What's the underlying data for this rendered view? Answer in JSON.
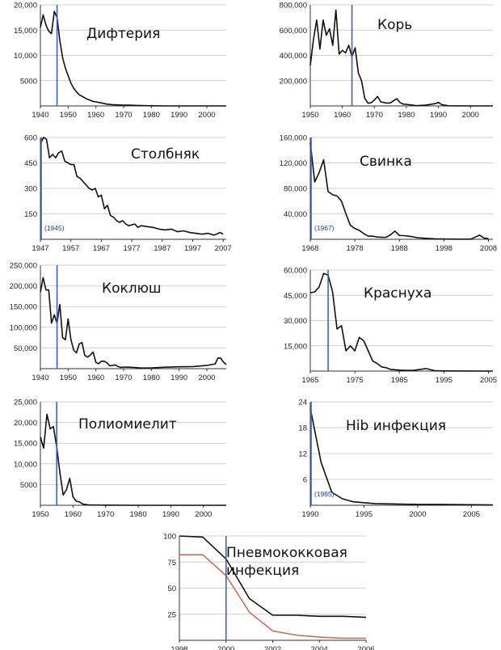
{
  "colors": {
    "line": "#111111",
    "marker": "#3b63b8",
    "secondary": "#c8705a",
    "grid": "#cfcfcf"
  },
  "chart_data": [
    {
      "type": "line",
      "title": "Дифтерия",
      "xlim": [
        1940,
        2007
      ],
      "ylim": [
        0,
        20000
      ],
      "x_ticks": [
        1940,
        1950,
        1960,
        1970,
        1980,
        1990,
        2000
      ],
      "y_ticks": [
        5000,
        10000,
        15000,
        20000
      ],
      "y_tick_labels": [
        "5000",
        "10,000",
        "15,000",
        "20,000"
      ],
      "marker_year": 1946,
      "series": [
        {
          "x": [
            1940,
            1941,
            1942,
            1943,
            1944,
            1945,
            1946,
            1947,
            1948,
            1949,
            1950,
            1951,
            1952,
            1953,
            1954,
            1955,
            1956,
            1957,
            1958,
            1959,
            1960,
            1962,
            1964,
            1966,
            1968,
            1970,
            1972,
            1975,
            1980,
            1985,
            1990,
            1995,
            2000,
            2007
          ],
          "values": [
            15500,
            18000,
            16000,
            14800,
            14300,
            18700,
            17500,
            13000,
            9500,
            7500,
            6000,
            4500,
            3500,
            2800,
            2200,
            1900,
            1600,
            1300,
            1100,
            900,
            800,
            600,
            350,
            250,
            200,
            150,
            150,
            100,
            30,
            5,
            5,
            2,
            2,
            0
          ]
        }
      ]
    },
    {
      "type": "line",
      "title": "Корь",
      "xlim": [
        1950,
        2007
      ],
      "ylim": [
        0,
        800000
      ],
      "x_ticks": [
        1950,
        1960,
        1970,
        1980,
        1990,
        2000
      ],
      "y_ticks": [
        200000,
        400000,
        600000,
        800000
      ],
      "y_tick_labels": [
        "200,000",
        "400,000",
        "600,000",
        "800,000"
      ],
      "marker_year": 1963,
      "series": [
        {
          "x": [
            1950,
            1951,
            1952,
            1953,
            1954,
            1955,
            1956,
            1957,
            1958,
            1959,
            1960,
            1961,
            1962,
            1963,
            1964,
            1965,
            1966,
            1967,
            1968,
            1969,
            1970,
            1971,
            1972,
            1973,
            1974,
            1975,
            1976,
            1977,
            1978,
            1979,
            1980,
            1983,
            1986,
            1989,
            1990,
            1991,
            1993,
            1996,
            2000,
            2007
          ],
          "values": [
            320000,
            530000,
            680000,
            450000,
            680000,
            560000,
            610000,
            480000,
            760000,
            410000,
            440000,
            420000,
            480000,
            390000,
            460000,
            260000,
            200000,
            60000,
            22000,
            25000,
            47000,
            75000,
            32000,
            27000,
            22000,
            24000,
            41000,
            57000,
            27000,
            14000,
            13000,
            2000,
            6000,
            18000,
            28000,
            10000,
            1000,
            500,
            100,
            50
          ]
        }
      ]
    },
    {
      "type": "line",
      "title": "Столбняк",
      "xlim": [
        1947,
        2008
      ],
      "ylim": [
        0,
        600
      ],
      "x_ticks": [
        1947,
        1957,
        1967,
        1977,
        1987,
        1997,
        2007
      ],
      "y_ticks": [
        150,
        300,
        450,
        600
      ],
      "y_tick_labels": [
        "150",
        "300",
        "450",
        "600"
      ],
      "marker_year": 1947,
      "annotation": "(1945)",
      "series": [
        {
          "x": [
            1947,
            1948,
            1949,
            1950,
            1951,
            1952,
            1953,
            1954,
            1955,
            1956,
            1957,
            1958,
            1959,
            1960,
            1961,
            1962,
            1963,
            1964,
            1965,
            1966,
            1967,
            1968,
            1969,
            1970,
            1971,
            1972,
            1973,
            1974,
            1975,
            1976,
            1977,
            1978,
            1979,
            1980,
            1982,
            1984,
            1986,
            1988,
            1990,
            1992,
            1994,
            1996,
            1998,
            2000,
            2002,
            2004,
            2006,
            2007
          ],
          "values": [
            560,
            600,
            590,
            480,
            500,
            480,
            510,
            520,
            460,
            450,
            440,
            440,
            370,
            360,
            340,
            320,
            300,
            290,
            300,
            250,
            260,
            180,
            200,
            140,
            130,
            110,
            100,
            110,
            90,
            80,
            85,
            90,
            70,
            80,
            75,
            70,
            60,
            55,
            60,
            45,
            50,
            40,
            35,
            30,
            35,
            25,
            40,
            30
          ]
        }
      ]
    },
    {
      "type": "line",
      "title": "Свинка",
      "xlim": [
        1968,
        2009
      ],
      "ylim": [
        0,
        160000
      ],
      "x_ticks": [
        1968,
        1978,
        1988,
        1998,
        2008
      ],
      "y_ticks": [
        40000,
        80000,
        120000,
        160000
      ],
      "y_tick_labels": [
        "40,000",
        "80,000",
        "120,000",
        "160,000"
      ],
      "marker_year": 1968,
      "annotation": "(1967)",
      "series": [
        {
          "x": [
            1968,
            1969,
            1970,
            1971,
            1972,
            1973,
            1974,
            1975,
            1976,
            1977,
            1978,
            1979,
            1980,
            1981,
            1982,
            1983,
            1984,
            1985,
            1986,
            1987,
            1988,
            1989,
            1990,
            1991,
            1992,
            1994,
            1996,
            2000,
            2004,
            2006,
            2007,
            2008
          ],
          "values": [
            152000,
            90000,
            105000,
            125000,
            75000,
            70000,
            68000,
            60000,
            40000,
            22000,
            17000,
            14000,
            9000,
            5000,
            5000,
            3500,
            3000,
            3000,
            7000,
            13000,
            6000,
            5700,
            5000,
            4000,
            2500,
            1500,
            800,
            300,
            300,
            6500,
            2000,
            1000
          ]
        }
      ]
    },
    {
      "type": "line",
      "title": "Коклюш",
      "xlim": [
        1940,
        2007
      ],
      "ylim": [
        0,
        250000
      ],
      "x_ticks": [
        1940,
        1950,
        1960,
        1970,
        1980,
        1990,
        2000
      ],
      "y_ticks": [
        50000,
        100000,
        150000,
        200000,
        250000
      ],
      "y_tick_labels": [
        "50,000",
        "100,000",
        "150,000",
        "200,000",
        "250,000"
      ],
      "marker_year": 1946,
      "series": [
        {
          "x": [
            1940,
            1941,
            1942,
            1943,
            1944,
            1945,
            1946,
            1947,
            1948,
            1949,
            1950,
            1951,
            1952,
            1953,
            1954,
            1955,
            1956,
            1957,
            1958,
            1959,
            1960,
            1961,
            1962,
            1963,
            1964,
            1965,
            1966,
            1967,
            1968,
            1969,
            1970,
            1972,
            1974,
            1976,
            1980,
            1985,
            1990,
            1995,
            2000,
            2003,
            2004,
            2005,
            2006,
            2007
          ],
          "values": [
            185000,
            220000,
            190000,
            190000,
            110000,
            130000,
            110000,
            155000,
            75000,
            70000,
            120000,
            70000,
            45000,
            38000,
            60000,
            63000,
            32000,
            28000,
            33000,
            40000,
            15000,
            12000,
            18000,
            18000,
            14000,
            7000,
            8000,
            9000,
            5000,
            3000,
            4000,
            3500,
            3000,
            1500,
            1700,
            3600,
            4500,
            5000,
            7800,
            11600,
            25800,
            25600,
            15600,
            10000
          ]
        }
      ]
    },
    {
      "type": "line",
      "title": "Краснуха",
      "xlim": [
        1965,
        2006
      ],
      "ylim": [
        0,
        60000
      ],
      "x_ticks": [
        1965,
        1975,
        1985,
        1995,
        2005
      ],
      "y_ticks": [
        15000,
        30000,
        45000,
        60000
      ],
      "y_tick_labels": [
        "15,000",
        "30,000",
        "45,000",
        "60,000"
      ],
      "marker_year": 1969,
      "series": [
        {
          "x": [
            1965,
            1966,
            1967,
            1968,
            1969,
            1970,
            1971,
            1972,
            1973,
            1974,
            1975,
            1976,
            1977,
            1978,
            1979,
            1980,
            1981,
            1982,
            1983,
            1984,
            1985,
            1986,
            1988,
            1990,
            1991,
            1993,
            1995,
            2000,
            2006
          ],
          "values": [
            46500,
            47000,
            50000,
            58000,
            57000,
            47000,
            25000,
            27000,
            12000,
            15000,
            12000,
            20000,
            18000,
            12000,
            6000,
            4500,
            2500,
            2000,
            1000,
            800,
            600,
            500,
            400,
            1100,
            1500,
            200,
            100,
            50,
            10
          ]
        }
      ]
    },
    {
      "type": "line",
      "title": "Полиомиелит",
      "xlim": [
        1950,
        2007
      ],
      "ylim": [
        0,
        25000
      ],
      "x_ticks": [
        1950,
        1960,
        1970,
        1980,
        1990,
        2000
      ],
      "y_ticks": [
        5000,
        10000,
        15000,
        20000,
        25000
      ],
      "y_tick_labels": [
        "5000",
        "10,000",
        "15,000",
        "20,000",
        "25,000"
      ],
      "marker_year": 1955,
      "series": [
        {
          "x": [
            1950,
            1951,
            1952,
            1953,
            1954,
            1955,
            1956,
            1957,
            1958,
            1959,
            1960,
            1961,
            1962,
            1963,
            1965,
            1970,
            1980,
            1990,
            2007
          ],
          "values": [
            16500,
            13800,
            22000,
            18500,
            19000,
            14000,
            7800,
            2500,
            3800,
            6500,
            2000,
            1000,
            800,
            300,
            100,
            30,
            5,
            2,
            0
          ]
        }
      ]
    },
    {
      "type": "line",
      "title": "Hib инфекция",
      "xlim": [
        1990,
        2007
      ],
      "ylim": [
        0,
        24
      ],
      "x_ticks": [
        1990,
        1995,
        2000,
        2005
      ],
      "y_ticks": [
        6,
        12,
        18,
        24
      ],
      "y_tick_labels": [
        "6",
        "12",
        "18",
        "24"
      ],
      "marker_year": 1990,
      "annotation": "(1985)",
      "series": [
        {
          "x": [
            1990,
            1991,
            1992,
            1993,
            1994,
            1995,
            1996,
            1998,
            2000,
            2002,
            2004,
            2007
          ],
          "values": [
            22.5,
            10,
            3,
            1.5,
            0.8,
            0.6,
            0.4,
            0.3,
            0.2,
            0.2,
            0.15,
            0.1
          ]
        }
      ]
    },
    {
      "type": "line",
      "title": "Пневмококковая инфекция",
      "title_lines": [
        "Пневмококковая",
        "инфекция"
      ],
      "xlim": [
        1998,
        2006
      ],
      "ylim": [
        0,
        100
      ],
      "x_ticks": [
        1998,
        2000,
        2002,
        2004,
        2006
      ],
      "y_ticks": [
        25,
        50,
        75,
        100
      ],
      "y_tick_labels": [
        "25",
        "50",
        "75",
        "100"
      ],
      "marker_year": 2000,
      "series": [
        {
          "color": "#111111",
          "x": [
            1998,
            1999,
            2000,
            2001,
            2002,
            2003,
            2004,
            2005,
            2006
          ],
          "values": [
            100,
            99,
            78,
            40,
            24,
            24,
            23,
            23,
            22
          ]
        },
        {
          "color": "#c8705a",
          "x": [
            1998,
            1999,
            2000,
            2001,
            2002,
            2003,
            2004,
            2005,
            2006
          ],
          "values": [
            82,
            82,
            62,
            27,
            9,
            5,
            3,
            2,
            2
          ]
        }
      ]
    }
  ]
}
